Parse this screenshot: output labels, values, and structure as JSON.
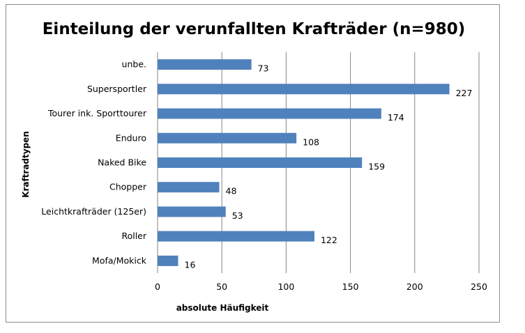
{
  "chart_data": {
    "type": "bar",
    "orientation": "horizontal",
    "title": "Einteilung der verunfallten Krafträder (n=980)",
    "xlabel": "absolute Häufigkeit",
    "ylabel": "Kraftradtypen",
    "categories": [
      "unbe.",
      "Supersportler",
      "Tourer ink. Sporttourer",
      "Enduro",
      "Naked Bike",
      "Chopper",
      "Leichtkrafträder (125er)",
      "Roller",
      "Mofa/Mokick"
    ],
    "values": [
      73,
      227,
      174,
      108,
      159,
      48,
      53,
      122,
      16
    ],
    "xlim": [
      0,
      250
    ],
    "xticks": [
      0,
      50,
      100,
      150,
      200,
      250
    ],
    "grid": "vertical",
    "legend": "none",
    "bar_color": "#4f81bd",
    "data_labels": true
  }
}
